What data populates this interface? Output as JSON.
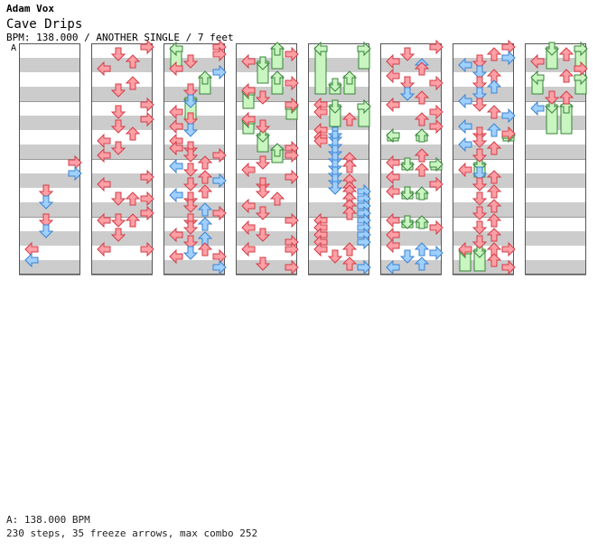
{
  "header": {
    "artist": "Adam Vox",
    "title": "Cave Drips",
    "meta": "BPM: 138.000 / ANOTHER SINGLE / 7 feet",
    "section_marker": "A"
  },
  "footer": {
    "bpm_line": "A: 138.000 BPM",
    "stats_line": "230 steps, 35 freeze arrows, max combo 252"
  },
  "stats": {
    "steps": 230,
    "freeze_arrows": 35,
    "max_combo": 252,
    "bpm": 138.0,
    "feet": 7,
    "difficulty": "ANOTHER",
    "style": "SINGLE"
  },
  "colors": {
    "stripe": "#cccccc",
    "border": "#555555",
    "arrow_red": "#ff9fa6",
    "arrow_red_stroke": "#d23c46",
    "arrow_blue": "#9fd0ff",
    "arrow_blue_stroke": "#3c82d2",
    "freeze_fill": "#c8f5c0",
    "freeze_stroke": "#39833a"
  },
  "notes": [
    {
      "c": 1,
      "l": 3,
      "b": 0.25,
      "k": "r"
    },
    {
      "c": 1,
      "l": 1,
      "b": 0.75,
      "k": "r"
    },
    {
      "c": 1,
      "l": 2,
      "b": 1.25,
      "k": "r"
    },
    {
      "c": 1,
      "l": 0,
      "b": 1.75,
      "k": "r"
    },
    {
      "c": 1,
      "l": 2,
      "b": 2.75,
      "k": "r"
    },
    {
      "c": 1,
      "l": 1,
      "b": 3.25,
      "k": "r"
    },
    {
      "c": 1,
      "l": 3,
      "b": 4.25,
      "k": "r"
    },
    {
      "c": 1,
      "l": 1,
      "b": 4.75,
      "k": "r"
    },
    {
      "c": 1,
      "l": 3,
      "b": 5.25,
      "k": "r"
    },
    {
      "c": 1,
      "l": 1,
      "b": 5.75,
      "k": "r"
    },
    {
      "c": 1,
      "l": 2,
      "b": 6.25,
      "k": "r"
    },
    {
      "c": 1,
      "l": 0,
      "b": 6.75,
      "k": "r"
    },
    {
      "c": 1,
      "l": 1,
      "b": 7.25,
      "k": "r"
    },
    {
      "c": 1,
      "l": 0,
      "b": 7.75,
      "k": "r"
    },
    {
      "c": 1,
      "l": 3,
      "b": 9.25,
      "k": "r"
    },
    {
      "c": 1,
      "l": 0,
      "b": 9.75,
      "k": "r"
    },
    {
      "c": 1,
      "l": 1,
      "b": 10.75,
      "k": "r"
    },
    {
      "c": 1,
      "l": 2,
      "b": 10.75,
      "k": "r"
    },
    {
      "c": 1,
      "l": 3,
      "b": 10.75,
      "k": "r"
    },
    {
      "c": 1,
      "l": 3,
      "b": 11.75,
      "k": "r"
    },
    {
      "c": 1,
      "l": 0,
      "b": 12.25,
      "k": "r"
    },
    {
      "c": 1,
      "l": 1,
      "b": 12.25,
      "k": "r"
    },
    {
      "c": 1,
      "l": 2,
      "b": 12.25,
      "k": "r"
    },
    {
      "c": 1,
      "l": 1,
      "b": 13.25,
      "k": "r"
    },
    {
      "c": 1,
      "l": 0,
      "b": 14.25,
      "k": "r"
    },
    {
      "c": 1,
      "l": 3,
      "b": 14.25,
      "k": "r"
    },
    {
      "c": 0,
      "l": 3,
      "b": 8.25,
      "k": "r"
    },
    {
      "c": 0,
      "l": 3,
      "b": 9.0,
      "k": "b"
    },
    {
      "c": 0,
      "l": 1,
      "b": 10.25,
      "k": "r"
    },
    {
      "c": 0,
      "l": 1,
      "b": 11.0,
      "k": "b"
    },
    {
      "c": 0,
      "l": 1,
      "b": 12.25,
      "k": "r"
    },
    {
      "c": 0,
      "l": 1,
      "b": 13.0,
      "k": "b"
    },
    {
      "c": 0,
      "l": 0,
      "b": 14.25,
      "k": "r"
    },
    {
      "c": 0,
      "l": 0,
      "b": 15.0,
      "k": "b"
    },
    {
      "c": 2,
      "l": 3,
      "b": 0.25,
      "k": "r"
    },
    {
      "c": 2,
      "l": 3,
      "b": 0.75,
      "k": "r"
    },
    {
      "c": 2,
      "l": 1,
      "b": 1.25,
      "k": "r"
    },
    {
      "c": 2,
      "l": 0,
      "b": 1.75,
      "k": "r"
    },
    {
      "c": 2,
      "l": 3,
      "b": 2.0,
      "k": "b"
    },
    {
      "c": 2,
      "l": 1,
      "b": 3.25,
      "k": "r"
    },
    {
      "c": 2,
      "l": 1,
      "b": 4.0,
      "k": "b"
    },
    {
      "c": 2,
      "l": 0,
      "b": 4.75,
      "k": "r"
    },
    {
      "c": 2,
      "l": 1,
      "b": 5.25,
      "k": "r"
    },
    {
      "c": 2,
      "l": 0,
      "b": 5.75,
      "k": "r"
    },
    {
      "c": 2,
      "l": 1,
      "b": 6.0,
      "k": "b"
    },
    {
      "c": 2,
      "l": 0,
      "b": 6.75,
      "k": "r"
    },
    {
      "c": 2,
      "l": 0,
      "b": 7.25,
      "k": "r"
    },
    {
      "c": 2,
      "l": 1,
      "b": 7.25,
      "k": "r"
    },
    {
      "c": 2,
      "l": 1,
      "b": 7.75,
      "k": "r"
    },
    {
      "c": 2,
      "l": 3,
      "b": 7.75,
      "k": "r"
    },
    {
      "c": 2,
      "l": 2,
      "b": 8.25,
      "k": "r"
    },
    {
      "c": 2,
      "l": 0,
      "b": 8.5,
      "k": "b"
    },
    {
      "c": 2,
      "l": 1,
      "b": 8.75,
      "k": "r"
    },
    {
      "c": 2,
      "l": 2,
      "b": 9.25,
      "k": "r"
    },
    {
      "c": 2,
      "l": 3,
      "b": 9.5,
      "k": "b"
    },
    {
      "c": 2,
      "l": 1,
      "b": 9.75,
      "k": "r"
    },
    {
      "c": 2,
      "l": 2,
      "b": 10.25,
      "k": "r"
    },
    {
      "c": 2,
      "l": 0,
      "b": 10.5,
      "k": "b"
    },
    {
      "c": 2,
      "l": 1,
      "b": 10.75,
      "k": "r"
    },
    {
      "c": 2,
      "l": 1,
      "b": 11.25,
      "k": "r"
    },
    {
      "c": 2,
      "l": 2,
      "b": 11.5,
      "k": "b"
    },
    {
      "c": 2,
      "l": 3,
      "b": 11.75,
      "k": "r"
    },
    {
      "c": 2,
      "l": 1,
      "b": 12.25,
      "k": "r"
    },
    {
      "c": 2,
      "l": 2,
      "b": 12.5,
      "k": "b"
    },
    {
      "c": 2,
      "l": 1,
      "b": 12.75,
      "k": "r"
    },
    {
      "c": 2,
      "l": 0,
      "b": 13.25,
      "k": "r"
    },
    {
      "c": 2,
      "l": 2,
      "b": 13.5,
      "k": "b"
    },
    {
      "c": 2,
      "l": 1,
      "b": 13.75,
      "k": "r"
    },
    {
      "c": 2,
      "l": 2,
      "b": 14.25,
      "k": "r"
    },
    {
      "c": 2,
      "l": 1,
      "b": 14.5,
      "k": "b"
    },
    {
      "c": 2,
      "l": 0,
      "b": 14.75,
      "k": "r"
    },
    {
      "c": 2,
      "l": 3,
      "b": 14.75,
      "k": "r"
    },
    {
      "c": 2,
      "l": 3,
      "b": 15.5,
      "k": "b"
    },
    {
      "c": 3,
      "l": 3,
      "b": 0.75,
      "k": "r"
    },
    {
      "c": 3,
      "l": 0,
      "b": 1.25,
      "k": "r"
    },
    {
      "c": 3,
      "l": 3,
      "b": 2.75,
      "k": "r"
    },
    {
      "c": 3,
      "l": 0,
      "b": 3.25,
      "k": "r"
    },
    {
      "c": 3,
      "l": 1,
      "b": 3.75,
      "k": "r"
    },
    {
      "c": 3,
      "l": 3,
      "b": 4.25,
      "k": "r"
    },
    {
      "c": 3,
      "l": 0,
      "b": 5.25,
      "k": "r"
    },
    {
      "c": 3,
      "l": 1,
      "b": 5.75,
      "k": "r"
    },
    {
      "c": 3,
      "l": 3,
      "b": 7.25,
      "k": "r"
    },
    {
      "c": 3,
      "l": 3,
      "b": 7.75,
      "k": "r"
    },
    {
      "c": 3,
      "l": 1,
      "b": 8.25,
      "k": "r"
    },
    {
      "c": 3,
      "l": 0,
      "b": 8.75,
      "k": "r"
    },
    {
      "c": 3,
      "l": 3,
      "b": 9.25,
      "k": "r"
    },
    {
      "c": 3,
      "l": 1,
      "b": 9.75,
      "k": "r"
    },
    {
      "c": 3,
      "l": 1,
      "b": 10.25,
      "k": "r"
    },
    {
      "c": 3,
      "l": 2,
      "b": 10.75,
      "k": "r"
    },
    {
      "c": 3,
      "l": 0,
      "b": 11.25,
      "k": "r"
    },
    {
      "c": 3,
      "l": 1,
      "b": 11.75,
      "k": "r"
    },
    {
      "c": 3,
      "l": 3,
      "b": 12.25,
      "k": "r"
    },
    {
      "c": 3,
      "l": 0,
      "b": 12.75,
      "k": "r"
    },
    {
      "c": 3,
      "l": 1,
      "b": 13.25,
      "k": "r"
    },
    {
      "c": 3,
      "l": 3,
      "b": 13.75,
      "k": "r"
    },
    {
      "c": 3,
      "l": 0,
      "b": 14.25,
      "k": "r"
    },
    {
      "c": 3,
      "l": 3,
      "b": 14.25,
      "k": "r"
    },
    {
      "c": 3,
      "l": 1,
      "b": 15.25,
      "k": "r"
    },
    {
      "c": 3,
      "l": 3,
      "b": 15.5,
      "k": "r"
    },
    {
      "c": 4,
      "l": 0,
      "b": 6.0,
      "k": "r"
    },
    {
      "c": 4,
      "l": 0,
      "b": 6.5,
      "k": "r"
    },
    {
      "c": 4,
      "l": 0,
      "b": 6.75,
      "k": "r"
    },
    {
      "c": 4,
      "l": 1,
      "b": 6.25,
      "k": "b"
    },
    {
      "c": 4,
      "l": 1,
      "b": 6.5,
      "k": "b"
    },
    {
      "c": 4,
      "l": 1,
      "b": 7.0,
      "k": "b"
    },
    {
      "c": 4,
      "l": 1,
      "b": 7.5,
      "k": "b"
    },
    {
      "c": 4,
      "l": 1,
      "b": 8.0,
      "k": "b"
    },
    {
      "c": 4,
      "l": 1,
      "b": 8.5,
      "k": "b"
    },
    {
      "c": 4,
      "l": 1,
      "b": 9.0,
      "k": "b"
    },
    {
      "c": 4,
      "l": 1,
      "b": 9.5,
      "k": "b"
    },
    {
      "c": 4,
      "l": 1,
      "b": 10.0,
      "k": "b"
    },
    {
      "c": 4,
      "l": 2,
      "b": 8.0,
      "k": "r"
    },
    {
      "c": 4,
      "l": 2,
      "b": 8.5,
      "k": "r"
    },
    {
      "c": 4,
      "l": 2,
      "b": 9.5,
      "k": "r"
    },
    {
      "c": 4,
      "l": 2,
      "b": 10.0,
      "k": "r"
    },
    {
      "c": 4,
      "l": 3,
      "b": 10.25,
      "k": "b"
    },
    {
      "c": 4,
      "l": 2,
      "b": 10.25,
      "k": "r"
    },
    {
      "c": 4,
      "l": 2,
      "b": 10.75,
      "k": "r"
    },
    {
      "c": 4,
      "l": 3,
      "b": 10.75,
      "k": "b"
    },
    {
      "c": 4,
      "l": 2,
      "b": 11.25,
      "k": "r"
    },
    {
      "c": 4,
      "l": 3,
      "b": 11.25,
      "k": "b"
    },
    {
      "c": 4,
      "l": 2,
      "b": 11.75,
      "k": "r"
    },
    {
      "c": 4,
      "l": 3,
      "b": 11.75,
      "k": "b"
    },
    {
      "c": 4,
      "l": 0,
      "b": 12.25,
      "k": "r"
    },
    {
      "c": 4,
      "l": 3,
      "b": 12.25,
      "k": "b"
    },
    {
      "c": 4,
      "l": 0,
      "b": 12.75,
      "k": "r"
    },
    {
      "c": 4,
      "l": 3,
      "b": 12.75,
      "k": "b"
    },
    {
      "c": 4,
      "l": 0,
      "b": 13.25,
      "k": "r"
    },
    {
      "c": 4,
      "l": 3,
      "b": 13.25,
      "k": "b"
    },
    {
      "c": 4,
      "l": 0,
      "b": 13.75,
      "k": "r"
    },
    {
      "c": 4,
      "l": 3,
      "b": 13.75,
      "k": "b"
    },
    {
      "c": 4,
      "l": 0,
      "b": 14.25,
      "k": "r"
    },
    {
      "c": 4,
      "l": 2,
      "b": 14.25,
      "k": "r"
    },
    {
      "c": 4,
      "l": 1,
      "b": 14.75,
      "k": "r"
    },
    {
      "c": 4,
      "l": 2,
      "b": 15.25,
      "k": "r"
    },
    {
      "c": 4,
      "l": 3,
      "b": 15.5,
      "k": "b"
    },
    {
      "c": 4,
      "l": 0,
      "b": 4.25,
      "k": "r"
    },
    {
      "c": 4,
      "l": 0,
      "b": 4.75,
      "k": "r"
    },
    {
      "c": 4,
      "l": 2,
      "b": 5.25,
      "k": "r"
    },
    {
      "c": 5,
      "l": 3,
      "b": 0.25,
      "k": "r"
    },
    {
      "c": 5,
      "l": 1,
      "b": 0.75,
      "k": "r"
    },
    {
      "c": 5,
      "l": 0,
      "b": 1.25,
      "k": "r"
    },
    {
      "c": 5,
      "l": 2,
      "b": 1.5,
      "k": "b"
    },
    {
      "c": 5,
      "l": 2,
      "b": 1.75,
      "k": "r"
    },
    {
      "c": 5,
      "l": 0,
      "b": 2.25,
      "k": "r"
    },
    {
      "c": 5,
      "l": 1,
      "b": 2.75,
      "k": "r"
    },
    {
      "c": 5,
      "l": 3,
      "b": 2.75,
      "k": "r"
    },
    {
      "c": 5,
      "l": 1,
      "b": 3.5,
      "k": "b"
    },
    {
      "c": 5,
      "l": 2,
      "b": 3.75,
      "k": "r"
    },
    {
      "c": 5,
      "l": 0,
      "b": 4.25,
      "k": "r"
    },
    {
      "c": 5,
      "l": 3,
      "b": 4.75,
      "k": "r"
    },
    {
      "c": 5,
      "l": 2,
      "b": 5.25,
      "k": "r"
    },
    {
      "c": 5,
      "l": 3,
      "b": 5.75,
      "k": "r"
    },
    {
      "c": 5,
      "l": 2,
      "b": 7.75,
      "k": "r"
    },
    {
      "c": 5,
      "l": 0,
      "b": 8.25,
      "k": "r"
    },
    {
      "c": 5,
      "l": 2,
      "b": 8.75,
      "k": "r"
    },
    {
      "c": 5,
      "l": 0,
      "b": 9.25,
      "k": "r"
    },
    {
      "c": 5,
      "l": 3,
      "b": 9.75,
      "k": "r"
    },
    {
      "c": 5,
      "l": 0,
      "b": 10.25,
      "k": "r"
    },
    {
      "c": 5,
      "l": 0,
      "b": 12.25,
      "k": "r"
    },
    {
      "c": 5,
      "l": 3,
      "b": 12.75,
      "k": "r"
    },
    {
      "c": 5,
      "l": 0,
      "b": 13.25,
      "k": "r"
    },
    {
      "c": 5,
      "l": 0,
      "b": 14.0,
      "k": "r"
    },
    {
      "c": 5,
      "l": 2,
      "b": 14.25,
      "k": "b"
    },
    {
      "c": 5,
      "l": 3,
      "b": 14.5,
      "k": "b"
    },
    {
      "c": 5,
      "l": 1,
      "b": 14.75,
      "k": "b"
    },
    {
      "c": 5,
      "l": 0,
      "b": 15.5,
      "k": "b"
    },
    {
      "c": 5,
      "l": 2,
      "b": 15.25,
      "k": "b"
    },
    {
      "c": 6,
      "l": 3,
      "b": 0.25,
      "k": "r"
    },
    {
      "c": 6,
      "l": 2,
      "b": 0.75,
      "k": "r"
    },
    {
      "c": 6,
      "l": 3,
      "b": 1.0,
      "k": "b"
    },
    {
      "c": 6,
      "l": 1,
      "b": 1.25,
      "k": "r"
    },
    {
      "c": 6,
      "l": 0,
      "b": 1.5,
      "k": "b"
    },
    {
      "c": 6,
      "l": 1,
      "b": 2.0,
      "k": "b"
    },
    {
      "c": 6,
      "l": 2,
      "b": 2.25,
      "k": "r"
    },
    {
      "c": 6,
      "l": 1,
      "b": 2.75,
      "k": "r"
    },
    {
      "c": 6,
      "l": 2,
      "b": 3.0,
      "k": "b"
    },
    {
      "c": 6,
      "l": 1,
      "b": 3.5,
      "k": "b"
    },
    {
      "c": 6,
      "l": 0,
      "b": 4.0,
      "k": "b"
    },
    {
      "c": 6,
      "l": 1,
      "b": 4.25,
      "k": "r"
    },
    {
      "c": 6,
      "l": 2,
      "b": 4.75,
      "k": "r"
    },
    {
      "c": 6,
      "l": 3,
      "b": 5.0,
      "k": "b"
    },
    {
      "c": 6,
      "l": 0,
      "b": 5.75,
      "k": "b"
    },
    {
      "c": 6,
      "l": 2,
      "b": 6.0,
      "k": "b"
    },
    {
      "c": 6,
      "l": 1,
      "b": 6.25,
      "k": "r"
    },
    {
      "c": 6,
      "l": 1,
      "b": 6.75,
      "k": "r"
    },
    {
      "c": 6,
      "l": 3,
      "b": 6.25,
      "k": "r"
    },
    {
      "c": 6,
      "l": 0,
      "b": 7.0,
      "k": "b"
    },
    {
      "c": 6,
      "l": 2,
      "b": 7.25,
      "k": "r"
    },
    {
      "c": 6,
      "l": 1,
      "b": 7.75,
      "k": "r"
    },
    {
      "c": 6,
      "l": 0,
      "b": 8.75,
      "k": "r"
    },
    {
      "c": 6,
      "l": 1,
      "b": 9.0,
      "k": "b"
    },
    {
      "c": 6,
      "l": 2,
      "b": 9.25,
      "k": "r"
    },
    {
      "c": 6,
      "l": 1,
      "b": 9.75,
      "k": "r"
    },
    {
      "c": 6,
      "l": 2,
      "b": 10.25,
      "k": "r"
    },
    {
      "c": 6,
      "l": 1,
      "b": 10.75,
      "k": "r"
    },
    {
      "c": 6,
      "l": 2,
      "b": 11.25,
      "k": "r"
    },
    {
      "c": 6,
      "l": 1,
      "b": 11.75,
      "k": "r"
    },
    {
      "c": 6,
      "l": 2,
      "b": 12.25,
      "k": "r"
    },
    {
      "c": 6,
      "l": 1,
      "b": 12.75,
      "k": "r"
    },
    {
      "c": 6,
      "l": 2,
      "b": 13.25,
      "k": "r"
    },
    {
      "c": 6,
      "l": 1,
      "b": 13.75,
      "k": "r"
    },
    {
      "c": 6,
      "l": 0,
      "b": 14.25,
      "k": "r"
    },
    {
      "c": 6,
      "l": 2,
      "b": 14.25,
      "k": "r"
    },
    {
      "c": 6,
      "l": 3,
      "b": 14.25,
      "k": "r"
    },
    {
      "c": 6,
      "l": 2,
      "b": 15.0,
      "k": "r"
    },
    {
      "c": 6,
      "l": 3,
      "b": 15.5,
      "k": "r"
    },
    {
      "c": 7,
      "l": 2,
      "b": 0.75,
      "k": "r"
    },
    {
      "c": 7,
      "l": 0,
      "b": 1.25,
      "k": "r"
    },
    {
      "c": 7,
      "l": 3,
      "b": 1.75,
      "k": "r"
    },
    {
      "c": 7,
      "l": 2,
      "b": 2.25,
      "k": "r"
    },
    {
      "c": 7,
      "l": 2,
      "b": 3.75,
      "k": "r"
    },
    {
      "c": 7,
      "l": 0,
      "b": 4.5,
      "k": "b"
    },
    {
      "c": 7,
      "l": 1,
      "b": 3.75,
      "k": "r"
    }
  ],
  "freezes": [
    {
      "c": 2,
      "l": 0,
      "b": 0.25,
      "e": 1.75
    },
    {
      "c": 2,
      "l": 2,
      "b": 2.25,
      "e": 3.5
    },
    {
      "c": 2,
      "l": 1,
      "b": 3.75,
      "e": 5.25
    },
    {
      "c": 3,
      "l": 2,
      "b": 0.25,
      "e": 1.75
    },
    {
      "c": 3,
      "l": 1,
      "b": 1.25,
      "e": 2.75
    },
    {
      "c": 3,
      "l": 2,
      "b": 2.25,
      "e": 3.5
    },
    {
      "c": 3,
      "l": 0,
      "b": 3.25,
      "e": 4.5
    },
    {
      "c": 3,
      "l": 3,
      "b": 4.25,
      "e": 5.25
    },
    {
      "c": 3,
      "l": 0,
      "b": 5.25,
      "e": 6.25
    },
    {
      "c": 3,
      "l": 1,
      "b": 6.25,
      "e": 7.5
    },
    {
      "c": 3,
      "l": 2,
      "b": 7.25,
      "e": 8.25
    },
    {
      "c": 4,
      "l": 0,
      "b": 0.25,
      "e": 3.5
    },
    {
      "c": 4,
      "l": 3,
      "b": 0.25,
      "e": 1.75
    },
    {
      "c": 4,
      "l": 1,
      "b": 2.75,
      "e": 3.5
    },
    {
      "c": 4,
      "l": 2,
      "b": 2.25,
      "e": 3.5
    },
    {
      "c": 4,
      "l": 1,
      "b": 4.25,
      "e": 5.75
    },
    {
      "c": 4,
      "l": 3,
      "b": 4.25,
      "e": 5.75
    },
    {
      "c": 5,
      "l": 0,
      "b": 6.25,
      "e": 6.75
    },
    {
      "c": 5,
      "l": 2,
      "b": 6.25,
      "e": 6.75
    },
    {
      "c": 5,
      "l": 1,
      "b": 8.25,
      "e": 8.75
    },
    {
      "c": 5,
      "l": 3,
      "b": 8.25,
      "e": 8.75
    },
    {
      "c": 5,
      "l": 1,
      "b": 10.25,
      "e": 10.75
    },
    {
      "c": 5,
      "l": 2,
      "b": 10.25,
      "e": 10.75
    },
    {
      "c": 5,
      "l": 1,
      "b": 12.25,
      "e": 12.75
    },
    {
      "c": 5,
      "l": 2,
      "b": 12.25,
      "e": 12.75
    },
    {
      "c": 6,
      "l": 3,
      "b": 6.25,
      "e": 6.75
    },
    {
      "c": 6,
      "l": 1,
      "b": 8.25,
      "e": 9.25
    },
    {
      "c": 6,
      "l": 0,
      "b": 14.25,
      "e": 15.75
    },
    {
      "c": 6,
      "l": 1,
      "b": 14.25,
      "e": 15.75
    },
    {
      "c": 7,
      "l": 1,
      "b": 0.25,
      "e": 1.75
    },
    {
      "c": 7,
      "l": 3,
      "b": 0.25,
      "e": 1.75
    },
    {
      "c": 7,
      "l": 0,
      "b": 2.25,
      "e": 3.5
    },
    {
      "c": 7,
      "l": 3,
      "b": 2.25,
      "e": 3.5
    },
    {
      "c": 7,
      "l": 1,
      "b": 4.25,
      "e": 6.25
    },
    {
      "c": 7,
      "l": 2,
      "b": 4.25,
      "e": 6.25
    }
  ]
}
